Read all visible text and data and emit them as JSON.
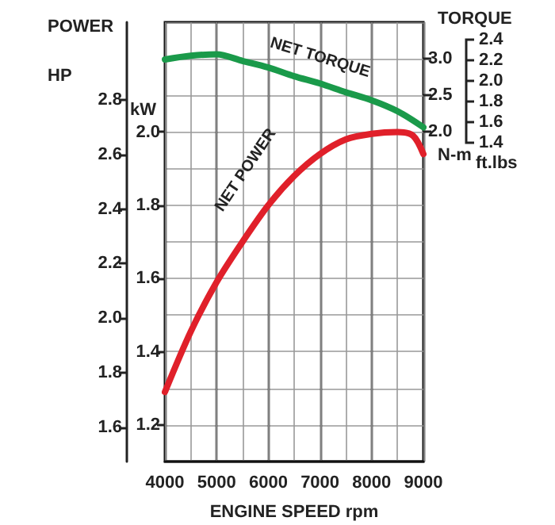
{
  "chart_data": {
    "type": "line",
    "xlabel": "ENGINE SPEED rpm",
    "ylabel": "kW",
    "y2label": "N-m",
    "y3label": "HP",
    "annotations": [
      "POWER",
      "TORQUE",
      "ft.lbs",
      "2.4",
      "2.2",
      "2.0",
      "1.8",
      "1.6",
      "1.4"
    ],
    "xlim": [
      4000,
      9000
    ],
    "xticks": [
      4000,
      5000,
      6000,
      7000,
      8000,
      9000
    ],
    "ylim": [
      1.1,
      2.3
    ],
    "yticks": [
      1.2,
      1.4,
      1.6,
      1.8,
      {
        "value": 2,
        "label": "2.0"
      }
    ],
    "y2lim": [
      -2.52,
      3.5
    ],
    "y2ticks": [
      {
        "value": 2,
        "label": "2.0"
      },
      2.5,
      {
        "value": 3,
        "label": "3.0"
      }
    ],
    "y3lim": [
      1.475,
      3.084
    ],
    "y3ticks": [
      1.6,
      1.8,
      {
        "value": 2,
        "label": "2.0"
      },
      2.2,
      2.4,
      2.6,
      2.8
    ],
    "grid": true,
    "marker": "none",
    "line_style": "solid",
    "series": [
      {
        "name": "NET POWER",
        "color": "#e0202a",
        "axis": "y",
        "x": [
          4000,
          4500,
          5000,
          5500,
          6000,
          6500,
          7000,
          7500,
          8000,
          8500,
          8800,
          9000
        ],
        "values": [
          1.29,
          1.455,
          1.59,
          1.7,
          1.8,
          1.88,
          1.94,
          1.98,
          1.995,
          2.0,
          1.99,
          1.94
        ]
      },
      {
        "name": "NET TORQUE",
        "color": "#1a9a4a",
        "axis": "y2",
        "x": [
          4000,
          4500,
          5000,
          5500,
          6000,
          6500,
          7000,
          7500,
          8000,
          8500,
          9000
        ],
        "values": [
          2.99,
          3.04,
          3.06,
          2.97,
          2.88,
          2.76,
          2.66,
          2.54,
          2.43,
          2.28,
          2.06
        ]
      }
    ]
  }
}
